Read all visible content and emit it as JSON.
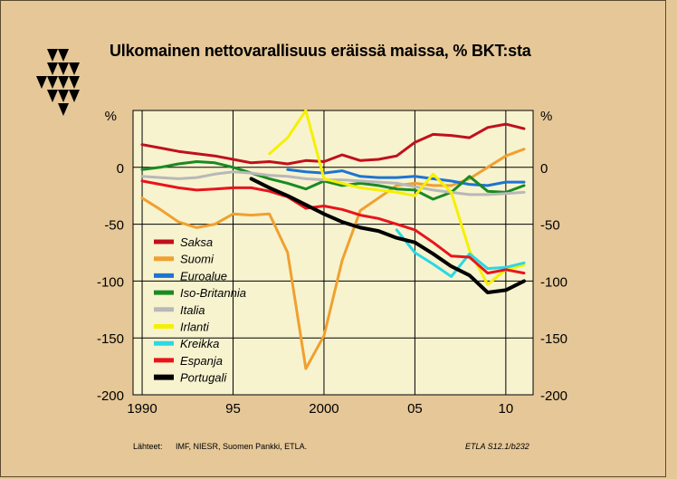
{
  "title": "Ulkomainen nettovarallisuus eräissä maissa, % BKT:sta",
  "footer": {
    "source_label": "Lähteet:",
    "source_text": "IMF, NIESR, Suomen Pankki, ETLA.",
    "code": "ETLA S12.1/b232"
  },
  "chart_data": {
    "type": "line",
    "title": "Ulkomainen nettovarallisuus eräissä maissa, % BKT:sta",
    "xlabel": "",
    "ylabel": "%",
    "unit_left": "%",
    "unit_right": "%",
    "xlim": [
      1989.5,
      2011.5
    ],
    "ylim": [
      -200,
      50
    ],
    "x_ticks": [
      1990,
      1995,
      2000,
      2005,
      2010
    ],
    "x_tick_labels": [
      "1990",
      "95",
      "2000",
      "05",
      "10"
    ],
    "y_ticks": [
      0,
      -50,
      -100,
      -150,
      -200
    ],
    "y_tick_labels": [
      "0",
      "-50",
      "-100",
      "-150",
      "-200"
    ],
    "grid": true,
    "legend_position": "left-middle",
    "series": [
      {
        "name": "Saksa",
        "color": "#c0101c",
        "width": 3,
        "x": [
          1990,
          1991,
          1992,
          1993,
          1994,
          1995,
          1996,
          1997,
          1998,
          1999,
          2000,
          2001,
          2002,
          2003,
          2004,
          2005,
          2006,
          2007,
          2008,
          2009,
          2010,
          2011
        ],
        "y": [
          20,
          17,
          14,
          12,
          10,
          7,
          4,
          5,
          3,
          6,
          5,
          11,
          6,
          7,
          10,
          22,
          29,
          28,
          26,
          35,
          38,
          34
        ]
      },
      {
        "name": "Suomi",
        "color": "#f0a030",
        "width": 3,
        "x": [
          1990,
          1991,
          1992,
          1993,
          1994,
          1995,
          1996,
          1997,
          1998,
          1999,
          2000,
          2001,
          2002,
          2003,
          2004,
          2005,
          2006,
          2007,
          2008,
          2009,
          2010,
          2011
        ],
        "y": [
          -27,
          -37,
          -48,
          -53,
          -50,
          -41,
          -42,
          -41,
          -75,
          -177,
          -148,
          -82,
          -38,
          -27,
          -16,
          -14,
          -16,
          -16,
          -10,
          0,
          10,
          16
        ]
      },
      {
        "name": "Euroalue",
        "color": "#1e73d2",
        "width": 3,
        "x": [
          1998,
          1999,
          2000,
          2001,
          2002,
          2003,
          2004,
          2005,
          2006,
          2007,
          2008,
          2009,
          2010,
          2011
        ],
        "y": [
          -2,
          -4,
          -5,
          -3,
          -8,
          -9,
          -9,
          -8,
          -10,
          -12,
          -15,
          -16,
          -13,
          -13
        ]
      },
      {
        "name": "Iso-Britannia",
        "color": "#1a8a22",
        "width": 3,
        "x": [
          1990,
          1991,
          1992,
          1993,
          1994,
          1995,
          1996,
          1997,
          1998,
          1999,
          2000,
          2001,
          2002,
          2003,
          2004,
          2005,
          2006,
          2007,
          2008,
          2009,
          2010,
          2011
        ],
        "y": [
          -2,
          0,
          3,
          5,
          4,
          0,
          -5,
          -10,
          -14,
          -19,
          -12,
          -16,
          -14,
          -16,
          -19,
          -20,
          -28,
          -22,
          -8,
          -21,
          -22,
          -16
        ]
      },
      {
        "name": "Italia",
        "color": "#b8b8b8",
        "width": 3,
        "x": [
          1990,
          1991,
          1992,
          1993,
          1994,
          1995,
          1996,
          1997,
          1998,
          1999,
          2000,
          2001,
          2002,
          2003,
          2004,
          2005,
          2006,
          2007,
          2008,
          2009,
          2010,
          2011
        ],
        "y": [
          -8,
          -9,
          -10,
          -9,
          -6,
          -4,
          -5,
          -7,
          -8,
          -10,
          -11,
          -11,
          -12,
          -13,
          -14,
          -17,
          -20,
          -22,
          -24,
          -24,
          -23,
          -22
        ]
      },
      {
        "name": "Irlanti",
        "color": "#f5f000",
        "width": 3,
        "x": [
          1997,
          1998,
          1999,
          2000,
          2001,
          2002,
          2003,
          2004,
          2005,
          2006,
          2007,
          2008,
          2009,
          2010,
          2011
        ],
        "y": [
          12,
          26,
          50,
          -10,
          -14,
          -18,
          -20,
          -22,
          -25,
          -6,
          -22,
          -73,
          -103,
          -90,
          -86
        ]
      },
      {
        "name": "Kreikka",
        "color": "#2ad8e6",
        "width": 3,
        "x": [
          2004,
          2005,
          2006,
          2007,
          2008,
          2009,
          2010,
          2011
        ],
        "y": [
          -55,
          -75,
          -85,
          -96,
          -76,
          -89,
          -88,
          -84
        ]
      },
      {
        "name": "Espanja",
        "color": "#e8141c",
        "width": 3,
        "x": [
          1990,
          1991,
          1992,
          1993,
          1994,
          1995,
          1996,
          1997,
          1998,
          1999,
          2000,
          2001,
          2002,
          2003,
          2004,
          2005,
          2006,
          2007,
          2008,
          2009,
          2010,
          2011
        ],
        "y": [
          -12,
          -15,
          -18,
          -20,
          -19,
          -18,
          -18,
          -21,
          -26,
          -36,
          -34,
          -37,
          -42,
          -45,
          -50,
          -55,
          -66,
          -78,
          -79,
          -93,
          -90,
          -93
        ]
      },
      {
        "name": "Portugali",
        "color": "#000000",
        "width": 4,
        "x": [
          1996,
          1997,
          1998,
          1999,
          2000,
          2001,
          2002,
          2003,
          2004,
          2005,
          2006,
          2007,
          2008,
          2009,
          2010,
          2011
        ],
        "y": [
          -10,
          -18,
          -25,
          -33,
          -41,
          -48,
          -53,
          -56,
          -62,
          -66,
          -76,
          -87,
          -95,
          -110,
          -108,
          -100
        ]
      }
    ]
  }
}
